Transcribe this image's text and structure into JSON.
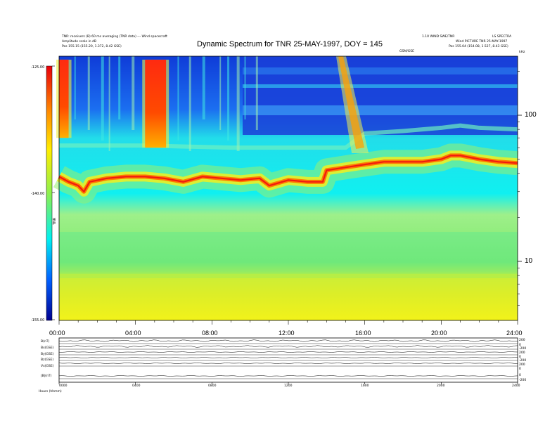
{
  "chart_data": {
    "type": "heatmap",
    "title": "Dynamic Spectrum for TNR 25-MAY-1997, DOY = 145",
    "header_left": {
      "line1": "TNR: receivers (B) 60 ms averaging (TNR data) --- Wind spacecraft",
      "line2": "Amplitude scale in dB",
      "line3_label": "Pos",
      "line3_value": "155.15 (155.20, 1.372, 8.42 GSE)"
    },
    "header_right": {
      "line1": "1.10 WIND SWE/TNR",
      "line2": "LS SPECTRA",
      "line3": "Wind PICTURE TNR 25-MAY-1997",
      "line4_label": "Pos",
      "line4_value": "155.04 (154.08, 1.527, 8.43 GSE)"
    },
    "axis_top_note": "GSM/GSE",
    "unit_label": "kHz",
    "x_ticks": [
      "00:00",
      "04:00",
      "08:00",
      "12:00",
      "16:00",
      "20:00",
      "24:00"
    ],
    "xlim_hours": [
      0,
      24
    ],
    "y_scale": "log",
    "y_ticks": [
      "100",
      "10"
    ],
    "colorbar": {
      "ticks": [
        "-125.00",
        "-140.00",
        "-155.00"
      ],
      "range_db": [
        -155,
        -125
      ],
      "label": "TNR"
    },
    "plasma_line_khz": [
      [
        0.0,
        38
      ],
      [
        0.5,
        35
      ],
      [
        1.0,
        33
      ],
      [
        1.3,
        30
      ],
      [
        1.6,
        35
      ],
      [
        2.5,
        37
      ],
      [
        3.5,
        38
      ],
      [
        4.5,
        38
      ],
      [
        5.5,
        37
      ],
      [
        6.5,
        35
      ],
      [
        7.5,
        38
      ],
      [
        8.5,
        37
      ],
      [
        9.5,
        36
      ],
      [
        10.5,
        37
      ],
      [
        11.0,
        33
      ],
      [
        12.0,
        36
      ],
      [
        13.0,
        35
      ],
      [
        13.8,
        35
      ],
      [
        14.0,
        42
      ],
      [
        15.0,
        44
      ],
      [
        16.0,
        46
      ],
      [
        17.0,
        48
      ],
      [
        18.0,
        48
      ],
      [
        19.0,
        48
      ],
      [
        20.0,
        50
      ],
      [
        20.5,
        53
      ],
      [
        21.0,
        53
      ],
      [
        22.0,
        50
      ],
      [
        23.0,
        48
      ],
      [
        24.0,
        47
      ]
    ],
    "upper_boundary_khz": [
      [
        0.0,
        62
      ],
      [
        4.5,
        62
      ],
      [
        9.0,
        60
      ],
      [
        15.0,
        60
      ],
      [
        16.0,
        75
      ],
      [
        18.0,
        78
      ],
      [
        20.0,
        82
      ],
      [
        21.0,
        85
      ],
      [
        22.0,
        82
      ],
      [
        24.0,
        80
      ]
    ],
    "bursts": [
      {
        "start_hours": 0.0,
        "end_hours": 0.5,
        "khz_low": 70,
        "khz_high": 240
      },
      {
        "start_hours": 4.5,
        "end_hours": 5.6,
        "khz_low": 60,
        "khz_high": 240
      }
    ],
    "drifting_burst": {
      "start_hours": 14.5,
      "end_hours": 16.2,
      "khz_top": 240,
      "khz_bottom": 55
    },
    "bottom_panel": {
      "rows": [
        "B(nT)",
        "Bx(GSE)",
        "By(GSE)",
        "Bz(GSE)",
        "Vx(GSE)",
        "|B|(nT)"
      ],
      "right_ticks": [
        [
          "200"
        ],
        [
          "0",
          "-200"
        ],
        [
          "200"
        ],
        [
          "0",
          "-200"
        ],
        [
          "200",
          "0"
        ],
        [
          "0",
          "-200"
        ]
      ],
      "x_ticks": [
        "0000",
        "0400",
        "0800",
        "1200",
        "1600",
        "2000",
        "2400"
      ],
      "footer": "Hours (hhmm)"
    }
  }
}
